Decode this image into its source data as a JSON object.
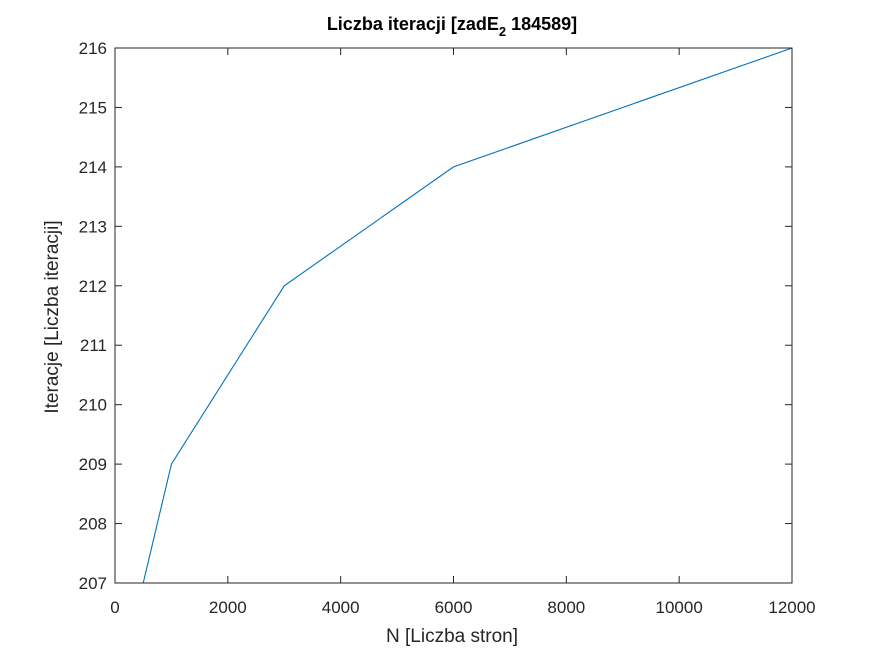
{
  "chart_data": {
    "type": "line",
    "title": {
      "main": "Liczba iteracji [zadE",
      "subscript": "2",
      "rest": " 184589]"
    },
    "xlabel": "N [Liczba stron]",
    "ylabel": "Iteracje [Liczba iteracji]",
    "xlim": [
      0,
      12000
    ],
    "ylim": [
      207,
      216
    ],
    "xticks": [
      0,
      2000,
      4000,
      6000,
      8000,
      10000,
      12000
    ],
    "yticks": [
      207,
      208,
      209,
      210,
      211,
      212,
      213,
      214,
      215,
      216
    ],
    "grid": false,
    "series": [
      {
        "color": "#0072BD",
        "x": [
          500,
          1000,
          3000,
          6000,
          12000
        ],
        "y": [
          207,
          209,
          212,
          214,
          216
        ]
      }
    ]
  }
}
